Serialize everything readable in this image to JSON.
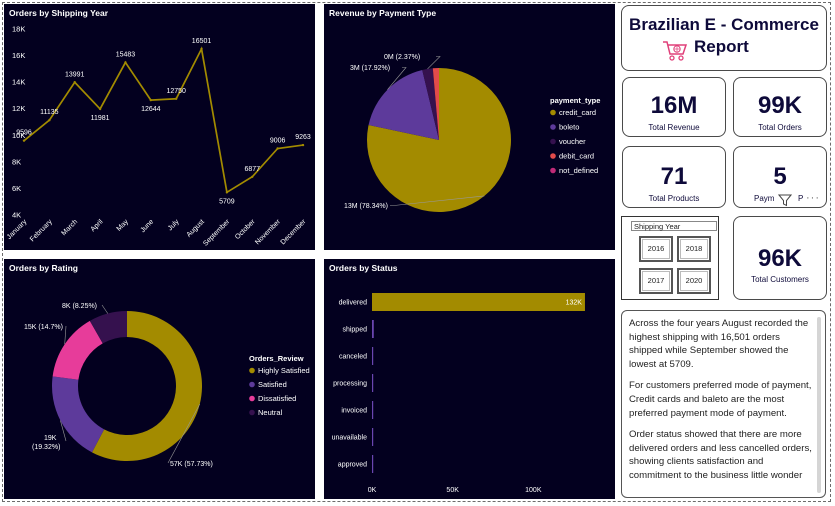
{
  "header": {
    "title_line1": "Brazilian E - Commerce",
    "title_line2": "Report",
    "icon": "shopping-cart-icon"
  },
  "kpis": [
    {
      "value": "16M",
      "label": "Total Revenue"
    },
    {
      "value": "99K",
      "label": "Total Orders"
    },
    {
      "value": "71",
      "label": "Total Products"
    },
    {
      "value": "5",
      "label": "Paym",
      "label2": "P"
    },
    {
      "value": "96K",
      "label": "Total Customers"
    }
  ],
  "slicer": {
    "title": "Shipping Year",
    "options": [
      "2016",
      "2018",
      "2017",
      "2020"
    ]
  },
  "visual_header_icons": {
    "filter": "filter-icon",
    "more": "more-options-icon"
  },
  "narrative": [
    "Across the four years August recorded the highest shipping with 16,501 orders shipped while September showed the lowest at 5709.",
    "For customers preferred mode of payment, Credit cards and baleto are the most preferred payment mode of payment.",
    "Order status showed that there are more delivered orders and less cancelled orders, showing clients satisfaction and commitment to the business little wonder"
  ],
  "colors": {
    "panel_bg": "#03001f",
    "gold": "#a38b00",
    "purple": "#5d3a9b",
    "dark_purple": "#35114e",
    "pink": "#e73c9a",
    "red": "#e24b4b",
    "dark_pink": "#c02a78"
  },
  "chart_data": [
    {
      "type": "line",
      "title": "Orders by Shipping Year",
      "categories": [
        "January",
        "February",
        "March",
        "April",
        "May",
        "June",
        "July",
        "August",
        "September",
        "October",
        "November",
        "December"
      ],
      "values": [
        9596,
        11135,
        13991,
        11981,
        15483,
        12644,
        12750,
        16501,
        5709,
        6877,
        9006,
        9263
      ],
      "data_labels": [
        "9596",
        "11135",
        "13991",
        "11981",
        "15483",
        "12644",
        "12750",
        "16501",
        "5709",
        "6877",
        "9006",
        "9263"
      ],
      "yticks": [
        "4K",
        "6K",
        "8K",
        "10K",
        "12K",
        "14K",
        "16K",
        "18K"
      ],
      "ylim": [
        4000,
        18000
      ],
      "color": "#a38b00"
    },
    {
      "type": "pie",
      "title": "Revenue by Payment Type",
      "legend_title": "payment_type",
      "labels": [
        "credit_card",
        "boleto",
        "voucher",
        "debit_card",
        "not_defined"
      ],
      "values": [
        78.34,
        17.92,
        2.37,
        1.37,
        0.0
      ],
      "data_labels": [
        "13M (78.34%)",
        "3M (17.92%)",
        "0M (2.37%)",
        "",
        ""
      ],
      "colors": [
        "#a38b00",
        "#5d3a9b",
        "#35114e",
        "#e24b4b",
        "#c02a78"
      ]
    },
    {
      "type": "pie",
      "title": "Orders by Rating",
      "legend_title": "Orders_Review",
      "labels": [
        "Highly Satisfied",
        "Satisfied",
        "Dissatisfied",
        "Neutral"
      ],
      "values": [
        57.73,
        19.32,
        14.7,
        8.25
      ],
      "data_labels": [
        "57K (57.73%)",
        "19K\n(19.32%)",
        "15K (14.7%)",
        "8K (8.25%)"
      ],
      "colors": [
        "#a38b00",
        "#5d3a9b",
        "#e73c9a",
        "#35114e"
      ]
    },
    {
      "type": "bar",
      "title": "Orders by Status",
      "categories": [
        "delivered",
        "shipped",
        "canceled",
        "processing",
        "invoiced",
        "unavailable",
        "approved"
      ],
      "values": [
        132000,
        1100,
        620,
        300,
        310,
        600,
        2
      ],
      "data_labels": [
        "132K",
        "",
        "",
        "",
        "",
        "",
        ""
      ],
      "xticks": [
        "0K",
        "50K",
        "100K"
      ],
      "xlim": [
        0,
        150000
      ],
      "color": "#a38b00"
    }
  ]
}
